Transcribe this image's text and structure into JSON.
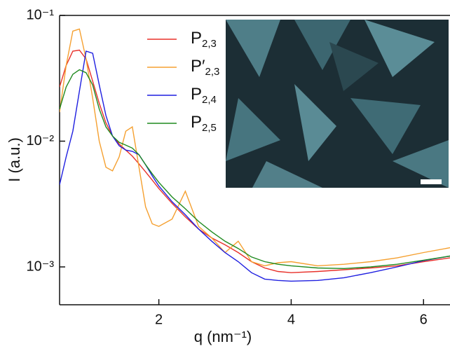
{
  "chart_data": {
    "type": "line",
    "xlabel": "q (nm⁻¹)",
    "ylabel": "I (a.u.)",
    "yscale": "log",
    "xlim": [
      0.5,
      6.4
    ],
    "xticks": [
      2,
      4,
      6
    ],
    "ylim": [
      0.0005,
      0.1
    ],
    "yticks": [
      {
        "value": 0.001,
        "label": "10⁻³"
      },
      {
        "value": 0.01,
        "label": "10⁻²"
      },
      {
        "value": 0.1,
        "label": "10⁻¹"
      }
    ],
    "legend": "top-center",
    "x": [
      0.5,
      0.6,
      0.7,
      0.8,
      0.9,
      1.0,
      1.1,
      1.2,
      1.3,
      1.4,
      1.5,
      1.6,
      1.7,
      1.8,
      1.9,
      2.0,
      2.2,
      2.4,
      2.6,
      2.8,
      3.0,
      3.2,
      3.4,
      3.6,
      3.8,
      4.0,
      4.4,
      4.8,
      5.2,
      5.6,
      6.0,
      6.4
    ],
    "series": [
      {
        "name": "P2,3",
        "color": "#e8312a",
        "values": [
          0.027,
          0.04,
          0.052,
          0.053,
          0.045,
          0.03,
          0.02,
          0.014,
          0.011,
          0.0095,
          0.0085,
          0.0076,
          0.0066,
          0.0057,
          0.0049,
          0.0042,
          0.0032,
          0.0025,
          0.002,
          0.0017,
          0.0015,
          0.0013,
          0.0011,
          0.00098,
          0.00092,
          0.0009,
          0.00092,
          0.00095,
          0.00098,
          0.00102,
          0.0011,
          0.00118
        ]
      },
      {
        "name": "P′2,3",
        "color": "#f5a030",
        "values": [
          0.017,
          0.04,
          0.075,
          0.078,
          0.045,
          0.022,
          0.01,
          0.0062,
          0.0058,
          0.0075,
          0.012,
          0.013,
          0.0062,
          0.003,
          0.0022,
          0.0021,
          0.0024,
          0.004,
          0.0021,
          0.0017,
          0.0013,
          0.0016,
          0.0011,
          0.00102,
          0.00108,
          0.0011,
          0.00102,
          0.00105,
          0.0011,
          0.00118,
          0.0013,
          0.00142
        ]
      },
      {
        "name": "P2,4",
        "color": "#1f1fe0",
        "values": [
          0.0045,
          0.0075,
          0.012,
          0.025,
          0.052,
          0.05,
          0.028,
          0.016,
          0.011,
          0.0092,
          0.0085,
          0.0083,
          0.0078,
          0.0065,
          0.0053,
          0.0044,
          0.0033,
          0.0026,
          0.002,
          0.0016,
          0.0013,
          0.0011,
          0.0009,
          0.0008,
          0.00078,
          0.00077,
          0.00078,
          0.00082,
          0.0009,
          0.001,
          0.00112,
          0.00122
        ]
      },
      {
        "name": "P2,5",
        "color": "#1f8a1f",
        "values": [
          0.018,
          0.027,
          0.034,
          0.037,
          0.035,
          0.028,
          0.018,
          0.013,
          0.011,
          0.0098,
          0.0093,
          0.0088,
          0.0078,
          0.0065,
          0.0055,
          0.0047,
          0.0036,
          0.0029,
          0.0023,
          0.0019,
          0.0016,
          0.0014,
          0.0012,
          0.0011,
          0.00105,
          0.00102,
          0.00098,
          0.00097,
          0.001,
          0.00105,
          0.00113,
          0.00122
        ]
      }
    ]
  }
}
